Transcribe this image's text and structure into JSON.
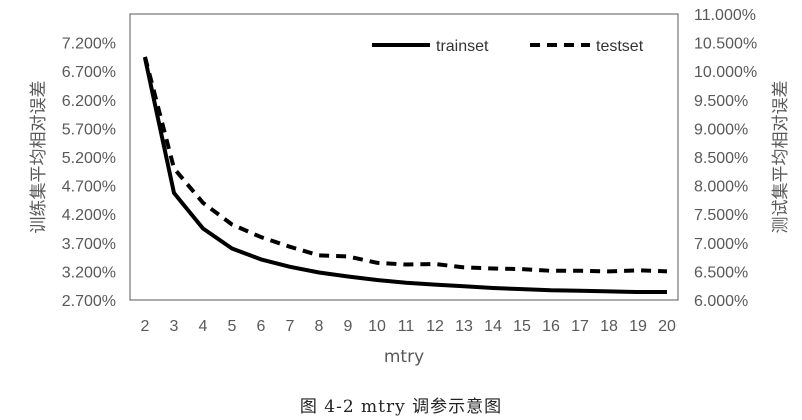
{
  "chart_data": {
    "type": "line",
    "title": "",
    "xlabel": "mtry",
    "ylabel": "训练集平均相对误差",
    "y2label": "测试集平均相对误差",
    "x": [
      2,
      3,
      4,
      5,
      6,
      7,
      8,
      9,
      10,
      11,
      12,
      13,
      14,
      15,
      16,
      17,
      18,
      19,
      20
    ],
    "ylim": [
      0.027,
      0.077
    ],
    "y2lim": [
      0.06,
      0.11
    ],
    "yticks": [
      "2.700%",
      "3.200%",
      "3.700%",
      "4.200%",
      "4.700%",
      "5.200%",
      "5.700%",
      "6.200%",
      "6.700%",
      "7.200%"
    ],
    "y2ticks": [
      "6.000%",
      "6.500%",
      "7.000%",
      "7.500%",
      "8.000%",
      "8.500%",
      "9.000%",
      "9.500%",
      "10.000%",
      "10.500%",
      "11.000%"
    ],
    "grid": false,
    "legend_position": "top-right",
    "series": [
      {
        "name": "trainset",
        "axis": "left",
        "style": "solid",
        "values": [
          0.0693,
          0.0457,
          0.0395,
          0.036,
          0.0341,
          0.0328,
          0.0318,
          0.0311,
          0.0305,
          0.03,
          0.0297,
          0.0294,
          0.0291,
          0.0289,
          0.0287,
          0.0286,
          0.0285,
          0.0284,
          0.0284
        ]
      },
      {
        "name": "testset",
        "axis": "right",
        "style": "dashed",
        "values": [
          0.1025,
          0.083,
          0.077,
          0.0732,
          0.071,
          0.0693,
          0.0678,
          0.0676,
          0.0665,
          0.0662,
          0.0663,
          0.0657,
          0.0655,
          0.0654,
          0.0651,
          0.0651,
          0.065,
          0.0652,
          0.065
        ]
      }
    ]
  },
  "caption": "图 4-2 mtry 调参示意图"
}
